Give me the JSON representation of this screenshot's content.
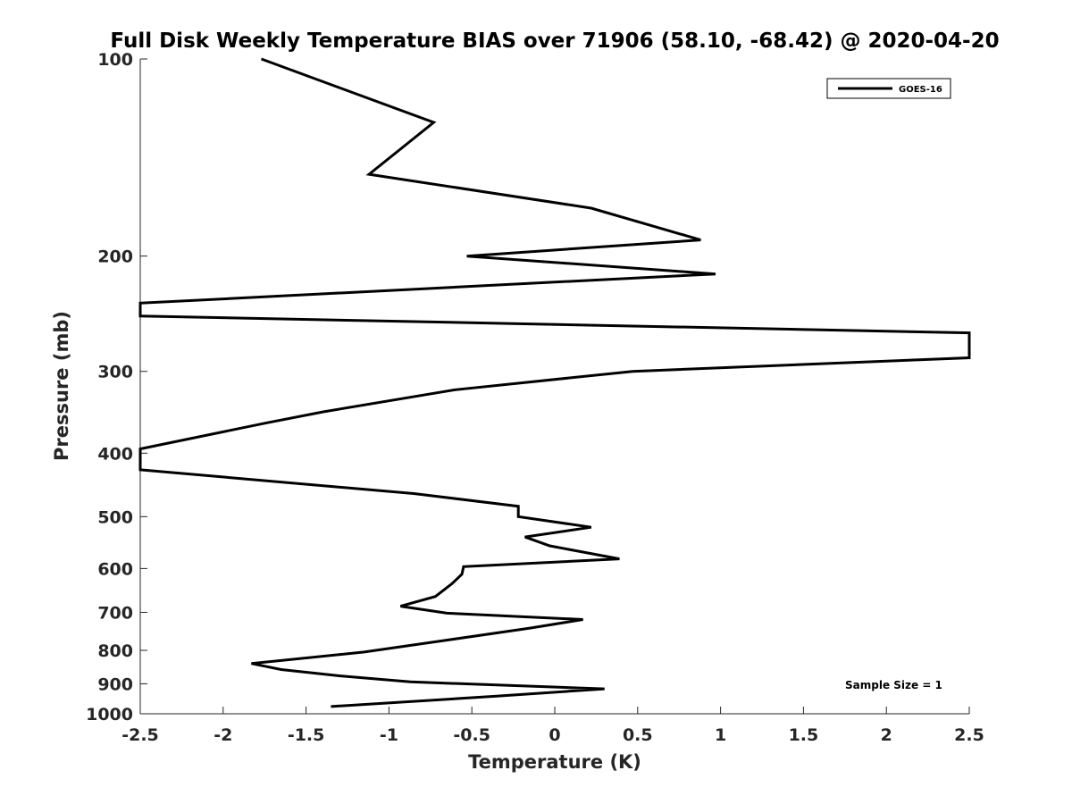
{
  "chart_data": {
    "type": "line",
    "title": "Full Disk Weekly Temperature BIAS over 71906 (58.10, -68.42) @ 2020-04-20",
    "xlabel": "Temperature (K)",
    "ylabel": "Pressure (mb)",
    "xlim": [
      -2.5,
      2.5
    ],
    "ylim": [
      100,
      1000
    ],
    "yscale": "log",
    "yreversed": true,
    "xticks": [
      -2.5,
      -2,
      -1.5,
      -1,
      -0.5,
      0,
      0.5,
      1,
      1.5,
      2,
      2.5
    ],
    "xtick_labels": [
      "-2.5",
      "-2",
      "-1.5",
      "-1",
      "-0.5",
      "0",
      "0.5",
      "1",
      "1.5",
      "2",
      "2.5"
    ],
    "yticks": [
      100,
      200,
      300,
      400,
      500,
      600,
      700,
      800,
      900,
      1000
    ],
    "ytick_labels": [
      "100",
      "200",
      "300",
      "400",
      "500",
      "600",
      "700",
      "800",
      "900",
      "1000"
    ],
    "grid": false,
    "legend_position": "top-right",
    "series": [
      {
        "name": "GOES-16",
        "color": "#000000",
        "points": [
          {
            "t": -1.77,
            "p": 100
          },
          {
            "t": -0.73,
            "p": 125
          },
          {
            "t": -1.12,
            "p": 150
          },
          {
            "t": 0.22,
            "p": 169
          },
          {
            "t": 0.88,
            "p": 189
          },
          {
            "t": -0.53,
            "p": 200
          },
          {
            "t": 0.97,
            "p": 213
          },
          {
            "t": -2.5,
            "p": 236
          },
          {
            "t": -2.5,
            "p": 247
          },
          {
            "t": 2.5,
            "p": 262
          },
          {
            "t": 2.5,
            "p": 286
          },
          {
            "t": 0.47,
            "p": 300
          },
          {
            "t": -0.6,
            "p": 320
          },
          {
            "t": -1.4,
            "p": 346
          },
          {
            "t": -1.75,
            "p": 360
          },
          {
            "t": -2.5,
            "p": 394
          },
          {
            "t": -2.5,
            "p": 424
          },
          {
            "t": -0.85,
            "p": 461
          },
          {
            "t": -0.22,
            "p": 482
          },
          {
            "t": -0.22,
            "p": 500
          },
          {
            "t": 0.22,
            "p": 519
          },
          {
            "t": -0.18,
            "p": 537
          },
          {
            "t": -0.03,
            "p": 554
          },
          {
            "t": 0.39,
            "p": 580
          },
          {
            "t": -0.55,
            "p": 596
          },
          {
            "t": -0.56,
            "p": 612
          },
          {
            "t": -0.62,
            "p": 633
          },
          {
            "t": -0.72,
            "p": 662
          },
          {
            "t": -0.93,
            "p": 685
          },
          {
            "t": -0.65,
            "p": 702
          },
          {
            "t": 0.17,
            "p": 718
          },
          {
            "t": -0.15,
            "p": 740
          },
          {
            "t": -0.7,
            "p": 775
          },
          {
            "t": -1.15,
            "p": 805
          },
          {
            "t": -1.83,
            "p": 838
          },
          {
            "t": -1.65,
            "p": 856
          },
          {
            "t": -1.3,
            "p": 875
          },
          {
            "t": -0.87,
            "p": 894
          },
          {
            "t": 0.3,
            "p": 916
          },
          {
            "t": -0.35,
            "p": 940
          },
          {
            "t": -1.35,
            "p": 975
          }
        ]
      }
    ],
    "annotations": [
      "Sample Size = 1"
    ]
  }
}
